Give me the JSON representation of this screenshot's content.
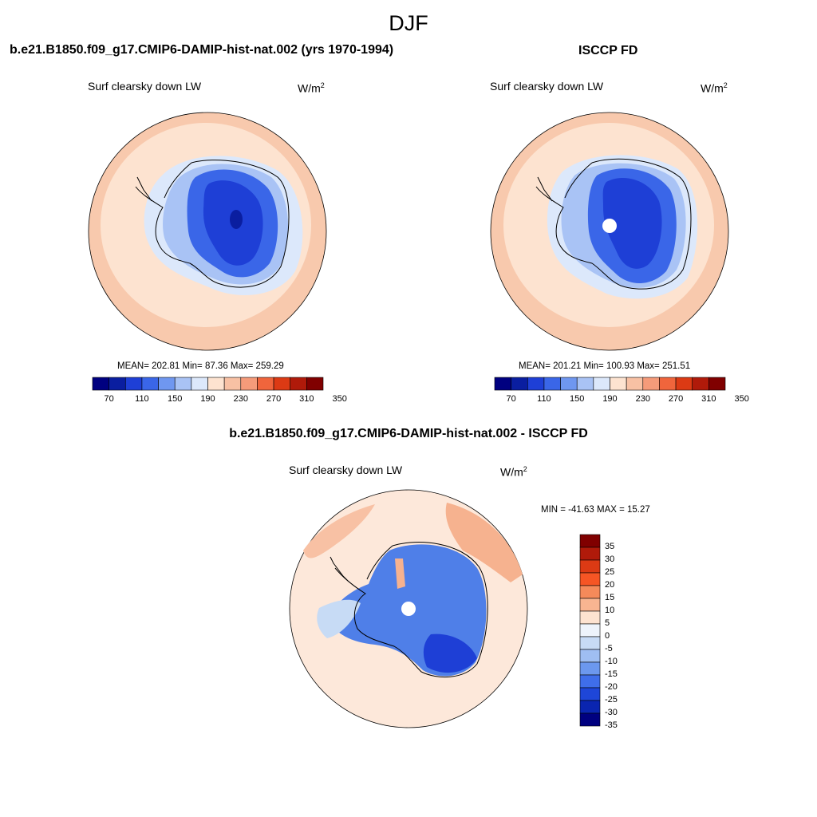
{
  "figure": {
    "title": "DJF"
  },
  "panels": [
    {
      "id": "model",
      "title": "b.e21.B1850.f09_g17.CMIP6-DAMIP-hist-nat.002 (yrs 1970-1994)",
      "variable": "Surf clearsky down LW",
      "units": "W/m",
      "units_sup": "2",
      "stats": "MEAN= 202.81  Min=  87.36  Max= 259.29"
    },
    {
      "id": "obs",
      "title": "ISCCP FD",
      "variable": "Surf clearsky down LW",
      "units": "W/m",
      "units_sup": "2",
      "stats": "MEAN= 201.21  Min= 100.93  Max= 251.51"
    },
    {
      "id": "diff",
      "title": "b.e21.B1850.f09_g17.CMIP6-DAMIP-hist-nat.002 - ISCCP FD",
      "variable": "Surf clearsky down LW",
      "units": "W/m",
      "units_sup": "2",
      "stats": "MIN = -41.63 MAX =  15.27"
    }
  ],
  "colorbars": {
    "absolute": {
      "colors": [
        "#000080",
        "#0a1ea0",
        "#1e3fd6",
        "#3a66e8",
        "#6f97f0",
        "#a9c3f5",
        "#dce8fb",
        "#fde3d0",
        "#f8c1a4",
        "#f59b7a",
        "#f0653c",
        "#dc3a14",
        "#b01a0a",
        "#800000"
      ],
      "tick_labels": [
        "70",
        "110",
        "150",
        "190",
        "230",
        "270",
        "310",
        "350"
      ]
    },
    "difference": {
      "colors": [
        "#800000",
        "#b01a0a",
        "#dc3a14",
        "#f65524",
        "#f58a5a",
        "#f8b591",
        "#fde3d0",
        "#eef4fb",
        "#c7dbf5",
        "#9fbef2",
        "#6c98ee",
        "#3f6eea",
        "#1e46d8",
        "#0a25b0",
        "#000080"
      ],
      "tick_labels": [
        "35",
        "30",
        "25",
        "20",
        "15",
        "10",
        "5",
        "0",
        "-5",
        "-10",
        "-15",
        "-20",
        "-25",
        "-30",
        "-35"
      ]
    }
  },
  "map_colors": {
    "outer_ring": "#f8c9ad",
    "ocean": "#fde3d0",
    "antarctic_margin": "#dce8fb",
    "ice_low": "#a9c3f5",
    "ice_mid": "#3a66e8",
    "ice_core": "#1e3fd6",
    "ice_min": "#0a1ea0",
    "diff_bg": "#fde8da",
    "diff_positive": "#f6b28f",
    "diff_blue": "#4f7fe8",
    "diff_dark": "#1e3fd6"
  }
}
